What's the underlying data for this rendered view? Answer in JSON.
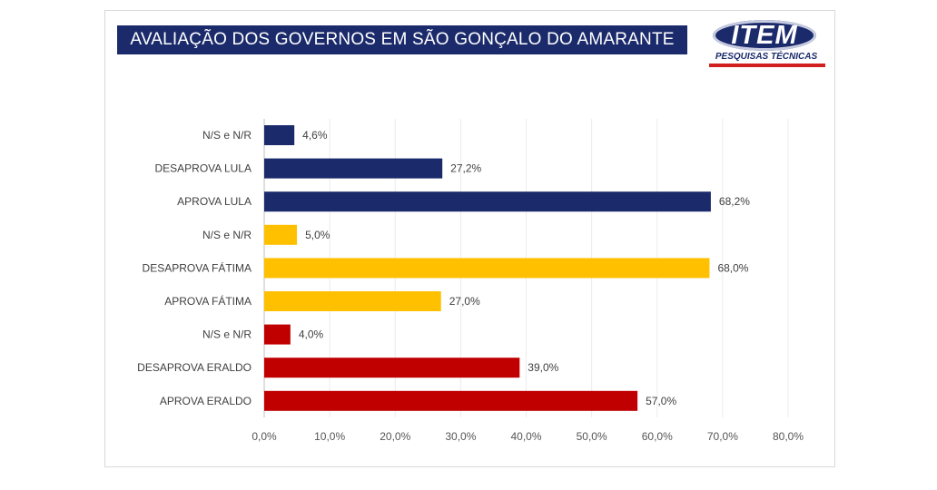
{
  "chart_data": {
    "type": "bar",
    "orientation": "horizontal",
    "title": "AVALIAÇÃO DOS GOVERNOS EM SÃO GONÇALO DO AMARANTE",
    "categories": [
      "N/S e N/R",
      "DESAPROVA LULA",
      "APROVA LULA",
      "N/S e N/R",
      "DESAPROVA FÁTIMA",
      "APROVA FÁTIMA",
      "N/S e N/R",
      "DESAPROVA ERALDO",
      "APROVA ERALDO"
    ],
    "values": [
      4.6,
      27.2,
      68.2,
      5.0,
      68.0,
      27.0,
      4.0,
      39.0,
      57.0
    ],
    "value_labels": [
      "4,6%",
      "27,2%",
      "68,2%",
      "5,0%",
      "68,0%",
      "27,0%",
      "4,0%",
      "39,0%",
      "57,0%"
    ],
    "colors": [
      "#1b2a6b",
      "#1b2a6b",
      "#1b2a6b",
      "#ffc000",
      "#ffc000",
      "#ffc000",
      "#c00000",
      "#c00000",
      "#c00000"
    ],
    "xlim": [
      0,
      80
    ],
    "x_ticks": [
      0,
      10,
      20,
      30,
      40,
      50,
      60,
      70,
      80
    ],
    "x_tick_labels": [
      "0,0%",
      "10,0%",
      "20,0%",
      "30,0%",
      "40,0%",
      "50,0%",
      "60,0%",
      "70,0%",
      "80,0%"
    ],
    "xlabel": "",
    "ylabel": "",
    "grid": true,
    "legend": "none"
  },
  "logo": {
    "name": "ITEM",
    "tagline": "PESQUISAS TÉCNICAS"
  }
}
